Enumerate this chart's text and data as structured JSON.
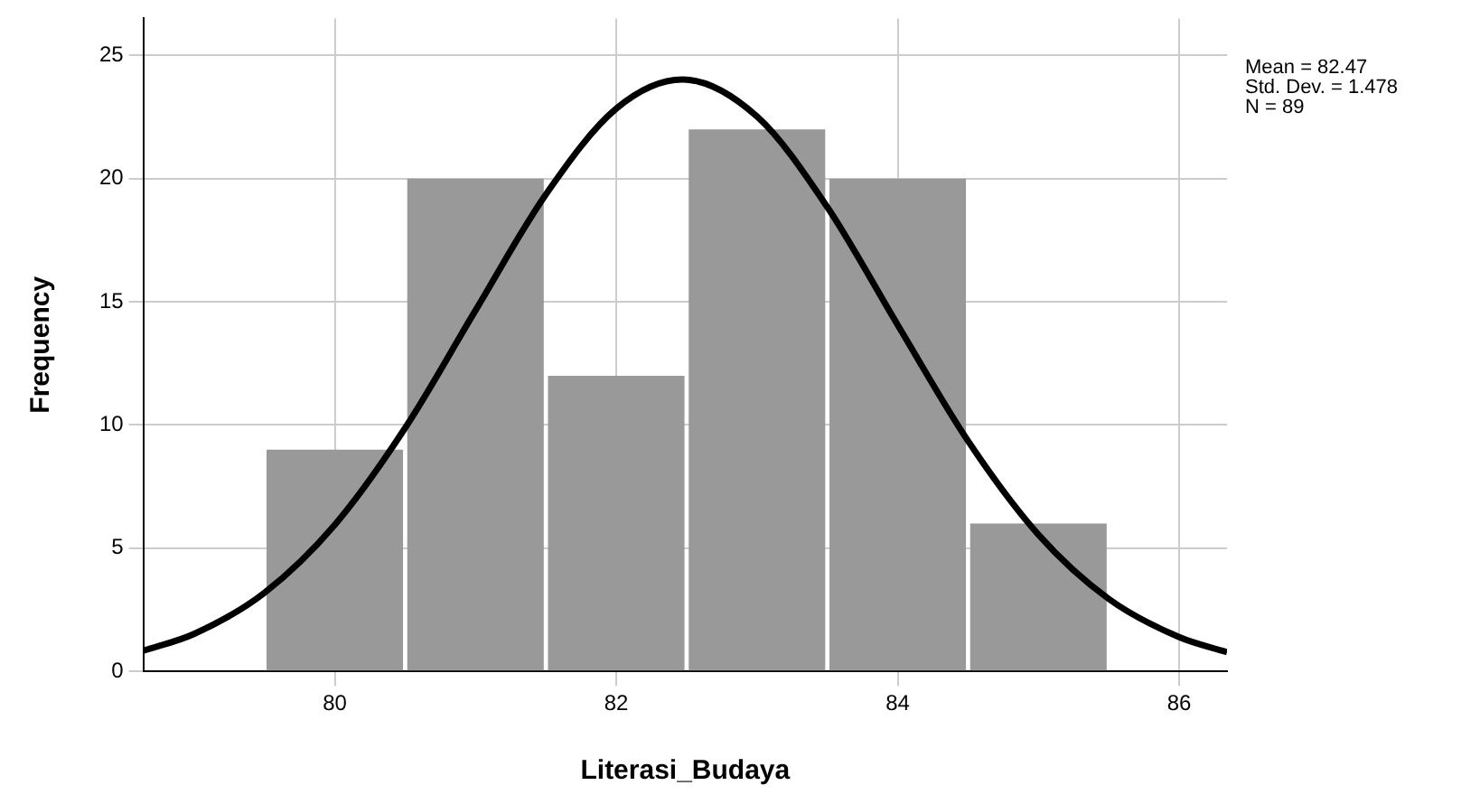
{
  "chart_data": {
    "type": "histogram",
    "xlabel": "Literasi_Budaya",
    "ylabel": "Frequency",
    "bins": [
      79.5,
      80.5,
      81.5,
      82.5,
      83.5,
      84.5,
      85.5
    ],
    "values": [
      9,
      20,
      12,
      22,
      20,
      6
    ],
    "color": "#999999",
    "series": [
      {
        "type": "line",
        "color": "#000000",
        "x": [
          78.64,
          79,
          79.5,
          80,
          80.5,
          81,
          81.5,
          82,
          82.47,
          83,
          83.5,
          84,
          84.5,
          85,
          85.5,
          86,
          86.34
        ],
        "values": [
          0.84,
          1.52,
          3.19,
          5.95,
          9.88,
          14.65,
          19.36,
          22.84,
          24.02,
          22.52,
          18.84,
          14.06,
          9.35,
          5.55,
          2.94,
          1.39,
          0.78
        ]
      }
    ],
    "xlim": [
      78.64,
      86.34
    ],
    "xticks": [
      80,
      82,
      84,
      86
    ],
    "ylim": [
      0,
      26.5
    ],
    "yticks": [
      0,
      5,
      10,
      15,
      20,
      25
    ],
    "grid": true,
    "marker": "none",
    "line_style": "solid",
    "annotations": [
      "Mean = 82.47",
      "Std. Dev. = 1.478",
      "N = 89"
    ]
  }
}
